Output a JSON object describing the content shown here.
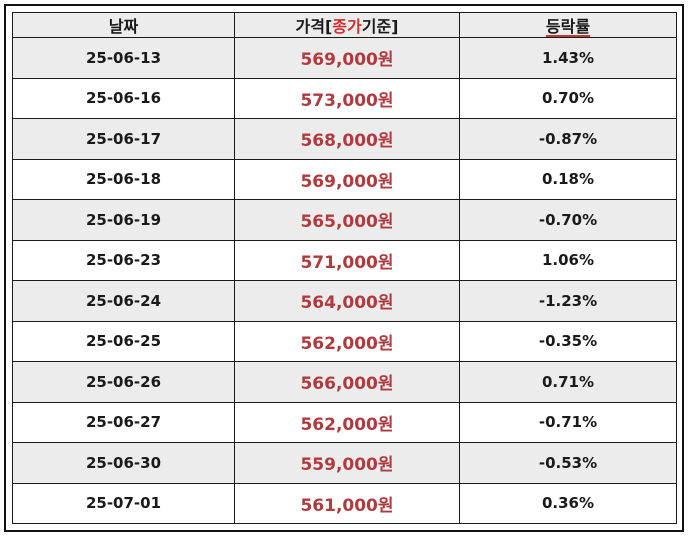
{
  "header": {
    "date_label": "날짜",
    "price_label_prefix": "가격[",
    "price_label_highlight": "종가",
    "price_label_suffix": "기준]",
    "rate_label": "등락률"
  },
  "colors": {
    "price_text": "#b03a3e",
    "highlight": "#d22d2d",
    "stripe": "#ececec",
    "border": "#1a1a1a"
  },
  "rows": [
    {
      "date": "25-06-13",
      "price": "569,000원",
      "rate": "1.43%"
    },
    {
      "date": "25-06-16",
      "price": "573,000원",
      "rate": "0.70%"
    },
    {
      "date": "25-06-17",
      "price": "568,000원",
      "rate": "-0.87%"
    },
    {
      "date": "25-06-18",
      "price": "569,000원",
      "rate": "0.18%"
    },
    {
      "date": "25-06-19",
      "price": "565,000원",
      "rate": "-0.70%"
    },
    {
      "date": "25-06-23",
      "price": "571,000원",
      "rate": "1.06%"
    },
    {
      "date": "25-06-24",
      "price": "564,000원",
      "rate": "-1.23%"
    },
    {
      "date": "25-06-25",
      "price": "562,000원",
      "rate": "-0.35%"
    },
    {
      "date": "25-06-26",
      "price": "566,000원",
      "rate": "0.71%"
    },
    {
      "date": "25-06-27",
      "price": "562,000원",
      "rate": "-0.71%"
    },
    {
      "date": "25-06-30",
      "price": "559,000원",
      "rate": "-0.53%"
    },
    {
      "date": "25-07-01",
      "price": "561,000원",
      "rate": "0.36%"
    }
  ]
}
